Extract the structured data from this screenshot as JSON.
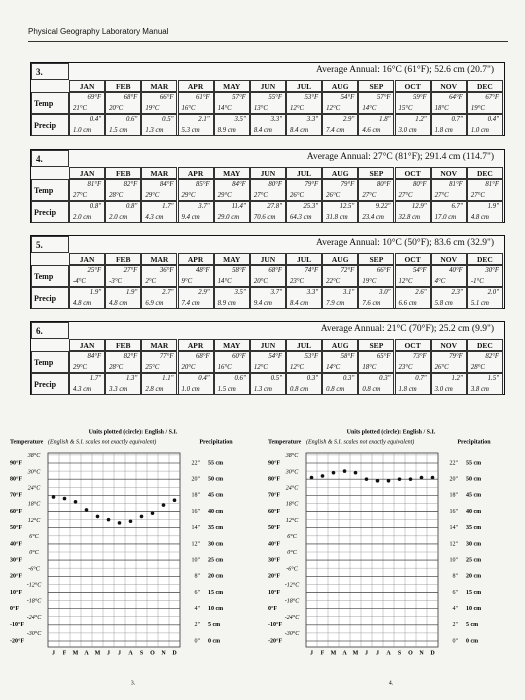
{
  "header": {
    "title": "Physical Geography Laboratory Manual"
  },
  "months": [
    "JAN",
    "FEB",
    "MAR",
    "APR",
    "MAY",
    "JUN",
    "JUL",
    "AUG",
    "SEP",
    "OCT",
    "NOV",
    "DEC"
  ],
  "row_labels": {
    "temp": "Temp",
    "precip": "Precip"
  },
  "tables": [
    {
      "number": "3.",
      "annual": "Average Annual: 16°C (61°F); 52.6 cm (20.7\")",
      "temp_f": [
        "69°F",
        "68°F",
        "66°F",
        "61°F",
        "57°F",
        "55°F",
        "53°F",
        "54°F",
        "57°F",
        "59°F",
        "64°F",
        "67°F"
      ],
      "temp_c": [
        "21°C",
        "20°C",
        "19°C",
        "16°C",
        "14°C",
        "13°C",
        "12°C",
        "12°C",
        "14°C",
        "15°C",
        "18°C",
        "19°C"
      ],
      "precip_in": [
        "0.4\"",
        "0.6\"",
        "0.5\"",
        "2.1\"",
        "3.5\"",
        "3.3\"",
        "3.3\"",
        "2.9\"",
        "1.8\"",
        "1.2\"",
        "0.7\"",
        "0.4\""
      ],
      "precip_cm": [
        "1.0 cm",
        "1.5 cm",
        "1.3 cm",
        "5.3 cm",
        "8.9 cm",
        "8.4 cm",
        "8.4 cm",
        "7.4 cm",
        "4.6 cm",
        "3.0 cm",
        "1.8 cm",
        "1.0 cm"
      ]
    },
    {
      "number": "4.",
      "annual": "Average Annual: 27°C (81°F); 291.4 cm (114.7\")",
      "temp_f": [
        "81°F",
        "82°F",
        "84°F",
        "85°F",
        "84°F",
        "80°F",
        "79°F",
        "79°F",
        "80°F",
        "80°F",
        "81°F",
        "81°F"
      ],
      "temp_c": [
        "27°C",
        "28°C",
        "29°C",
        "29°C",
        "29°C",
        "27°C",
        "26°C",
        "26°C",
        "27°C",
        "27°C",
        "27°C",
        "27°C"
      ],
      "precip_in": [
        "0.8\"",
        "0.8\"",
        "1.7\"",
        "3.7\"",
        "11.4\"",
        "27.8\"",
        "25.3\"",
        "12.5\"",
        "9.22\"",
        "12.9\"",
        "6.7\"",
        "1.9\""
      ],
      "precip_cm": [
        "2.0 cm",
        "2.0 cm",
        "4.3 cm",
        "9.4 cm",
        "29.0 cm",
        "70.6 cm",
        "64.3 cm",
        "31.8 cm",
        "23.4 cm",
        "32.8 cm",
        "17.0 cm",
        "4.8 cm"
      ]
    },
    {
      "number": "5.",
      "annual": "Average Annual: 10°C (50°F); 83.6 cm (32.9\")",
      "temp_f": [
        "25°F",
        "27°F",
        "36°F",
        "48°F",
        "58°F",
        "68°F",
        "74°F",
        "72°F",
        "66°F",
        "54°F",
        "40°F",
        "30°F"
      ],
      "temp_c": [
        "-4°C",
        "-3°C",
        "2°C",
        "9°C",
        "14°C",
        "20°C",
        "23°C",
        "22°C",
        "19°C",
        "12°C",
        "4°C",
        "-1°C"
      ],
      "precip_in": [
        "1.9\"",
        "1.9\"",
        "2.7\"",
        "2.9\"",
        "3.5\"",
        "3.7\"",
        "3.3\"",
        "3.1\"",
        "3.0\"",
        "2.6\"",
        "2.3\"",
        "2.0\""
      ],
      "precip_cm": [
        "4.8 cm",
        "4.8 cm",
        "6.9 cm",
        "7.4 cm",
        "8.9 cm",
        "9.4 cm",
        "8.4 cm",
        "7.9 cm",
        "7.6 cm",
        "6.6 cm",
        "5.8 cm",
        "5.1 cm"
      ]
    },
    {
      "number": "6.",
      "annual": "Average Annual: 21°C (70°F); 25.2 cm (9.9\")",
      "temp_f": [
        "84°F",
        "82°F",
        "77°F",
        "68°F",
        "60°F",
        "54°F",
        "53°F",
        "58°F",
        "65°F",
        "73°F",
        "79°F",
        "82°F"
      ],
      "temp_c": [
        "29°C",
        "28°C",
        "25°C",
        "20°C",
        "16°C",
        "12°C",
        "12°C",
        "14°C",
        "18°C",
        "23°C",
        "26°C",
        "28°C"
      ],
      "precip_in": [
        "1.7\"",
        "1.3\"",
        "1.1\"",
        "0.4\"",
        "0.6\"",
        "0.5\"",
        "0.3\"",
        "0.3\"",
        "0.3\"",
        "0.7\"",
        "1.2\"",
        "1.5\""
      ],
      "precip_cm": [
        "4.3 cm",
        "3.3 cm",
        "2.8 cm",
        "1.0 cm",
        "1.5 cm",
        "1.3 cm",
        "0.8 cm",
        "0.8 cm",
        "0.8 cm",
        "1.8 cm",
        "3.0 cm",
        "3.8 cm"
      ]
    }
  ],
  "graphs": [
    {
      "units_title": "Units plotted (circle): English / S.I.",
      "temp_title": "Temperature",
      "temp_note": "(English & S.I. scales not exactly equivalent)",
      "precip_title": "Precipitation",
      "temp_f_ticks": [
        {
          "value": 90,
          "label": "90°F"
        },
        {
          "value": 80,
          "label": "80°F"
        },
        {
          "value": 70,
          "label": "70°F"
        },
        {
          "value": 60,
          "label": "60°F"
        },
        {
          "value": 50,
          "label": "50°F"
        },
        {
          "value": 40,
          "label": "40°F"
        },
        {
          "value": 30,
          "label": "30°F"
        },
        {
          "value": 20,
          "label": "20°F"
        },
        {
          "value": 10,
          "label": "10°F"
        },
        {
          "value": 0,
          "label": "0°F"
        },
        {
          "value": -10,
          "label": "-10°F"
        },
        {
          "value": -20,
          "label": "-20°F"
        }
      ],
      "temp_c_ticks": [
        "38°C",
        "30°C",
        "24°C",
        "18°C",
        "12°C",
        "6°C",
        "0°C",
        "-6°C",
        "-12°C",
        "-18°C",
        "-24°C",
        "-30°C"
      ],
      "precip_in_ticks": [
        {
          "value": 22,
          "label": "22\""
        },
        {
          "value": 20,
          "label": "20\""
        },
        {
          "value": 18,
          "label": "18\""
        },
        {
          "value": 16,
          "label": "16\""
        },
        {
          "value": 14,
          "label": "14\""
        },
        {
          "value": 12,
          "label": "12\""
        },
        {
          "value": 10,
          "label": "10\""
        },
        {
          "value": 8,
          "label": "8\""
        },
        {
          "value": 6,
          "label": "6\""
        },
        {
          "value": 4,
          "label": "4\""
        },
        {
          "value": 2,
          "label": "2\""
        },
        {
          "value": 0,
          "label": "0\""
        }
      ],
      "precip_cm_ticks": [
        "55 cm",
        "50 cm",
        "45 cm",
        "40 cm",
        "35 cm",
        "30 cm",
        "25 cm",
        "20 cm",
        "15 cm",
        "10 cm",
        "5 cm",
        "0 cm"
      ],
      "months": [
        "J",
        "F",
        "M",
        "A",
        "M",
        "J",
        "J",
        "A",
        "S",
        "O",
        "N",
        "D"
      ],
      "plotted_temp_f": [
        69,
        68,
        66,
        61,
        57,
        55,
        53,
        54,
        57,
        59,
        64,
        67
      ],
      "page": "3."
    },
    {
      "units_title": "Units plotted (circle): English / S.I.",
      "temp_title": "Temperature",
      "temp_note": "(English & S.I. scales not exactly equivalent)",
      "precip_title": "Precipitation",
      "temp_f_ticks": [
        {
          "value": 90,
          "label": "90°F"
        },
        {
          "value": 80,
          "label": "80°F"
        },
        {
          "value": 70,
          "label": "70°F"
        },
        {
          "value": 60,
          "label": "60°F"
        },
        {
          "value": 50,
          "label": "50°F"
        },
        {
          "value": 40,
          "label": "40°F"
        },
        {
          "value": 30,
          "label": "30°F"
        },
        {
          "value": 20,
          "label": "20°F"
        },
        {
          "value": 10,
          "label": "10°F"
        },
        {
          "value": 0,
          "label": "0°F"
        },
        {
          "value": -10,
          "label": "-10°F"
        },
        {
          "value": -20,
          "label": "-20°F"
        }
      ],
      "temp_c_ticks": [
        "38°C",
        "30°C",
        "24°C",
        "18°C",
        "12°C",
        "6°C",
        "0°C",
        "-6°C",
        "-12°C",
        "-18°C",
        "-24°C",
        "-30°C"
      ],
      "precip_in_ticks": [
        {
          "value": 22,
          "label": "22\""
        },
        {
          "value": 20,
          "label": "20\""
        },
        {
          "value": 18,
          "label": "18\""
        },
        {
          "value": 16,
          "label": "16\""
        },
        {
          "value": 14,
          "label": "14\""
        },
        {
          "value": 12,
          "label": "12\""
        },
        {
          "value": 10,
          "label": "10\""
        },
        {
          "value": 8,
          "label": "8\""
        },
        {
          "value": 6,
          "label": "6\""
        },
        {
          "value": 4,
          "label": "4\""
        },
        {
          "value": 2,
          "label": "2\""
        },
        {
          "value": 0,
          "label": "0\""
        }
      ],
      "precip_cm_ticks": [
        "55 cm",
        "50 cm",
        "45 cm",
        "40 cm",
        "35 cm",
        "30 cm",
        "25 cm",
        "20 cm",
        "15 cm",
        "10 cm",
        "5 cm",
        "0 cm"
      ],
      "months": [
        "J",
        "F",
        "M",
        "A",
        "M",
        "J",
        "J",
        "A",
        "S",
        "O",
        "N",
        "D"
      ],
      "plotted_temp_f": [
        81,
        82,
        84,
        85,
        84,
        80,
        79,
        79,
        80,
        80,
        81,
        81
      ],
      "page": "4."
    }
  ]
}
